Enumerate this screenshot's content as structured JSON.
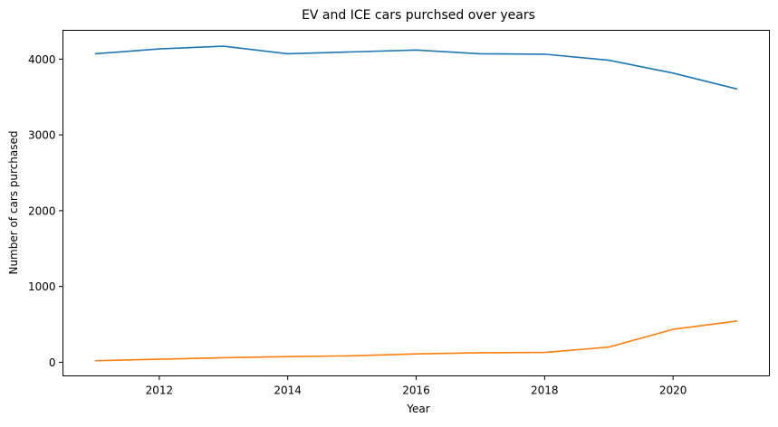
{
  "chart_data": {
    "type": "line",
    "title": "EV and ICE cars purchsed over years",
    "xlabel": "Year",
    "ylabel": "Number of cars purchased",
    "xlim": [
      2010.5,
      2021.5
    ],
    "ylim": [
      -180,
      4380
    ],
    "xticks": [
      2012,
      2014,
      2016,
      2018,
      2020
    ],
    "yticks": [
      0,
      1000,
      2000,
      3000,
      4000
    ],
    "x": [
      2011,
      2012,
      2013,
      2014,
      2015,
      2016,
      2017,
      2018,
      2019,
      2020,
      2021
    ],
    "grid": false,
    "legend": "none",
    "series": [
      {
        "color": "#1f77b4",
        "values": [
          4070,
          4135,
          4170,
          4070,
          4095,
          4120,
          4070,
          4065,
          3985,
          3815,
          3605
        ]
      },
      {
        "color": "#ff7f0e",
        "values": [
          20,
          40,
          60,
          75,
          85,
          110,
          125,
          130,
          200,
          435,
          545
        ]
      }
    ]
  }
}
